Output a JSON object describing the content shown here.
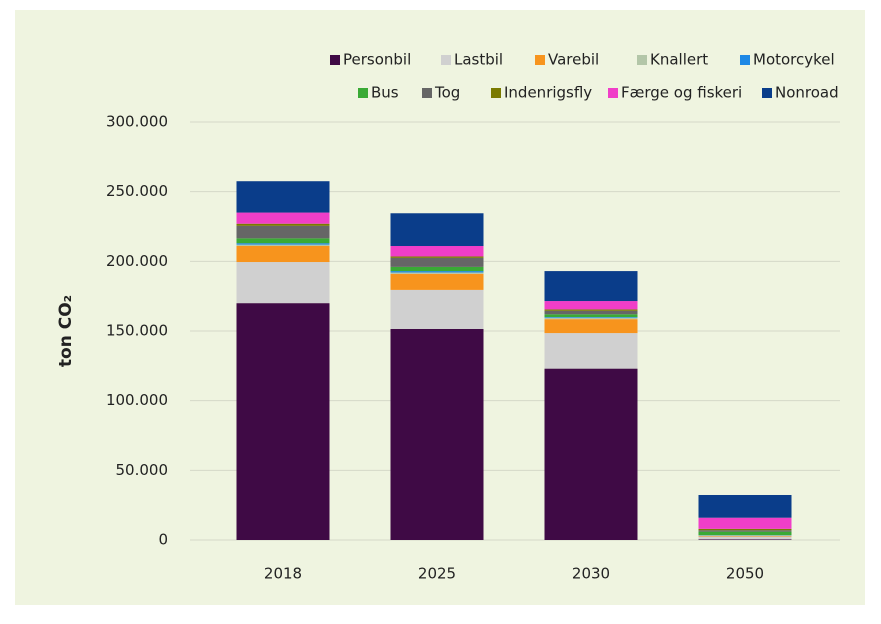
{
  "chart_data": {
    "type": "stacked-bar",
    "y_label": "ton CO₂",
    "categories": [
      "2018",
      "2025",
      "2030",
      "2050"
    ],
    "series": [
      {
        "name": "Personbil",
        "color": "#3f0a45",
        "values": [
          170000,
          151500,
          123000,
          500
        ]
      },
      {
        "name": "Lastbil",
        "color": "#d0d0d0",
        "values": [
          29500,
          28000,
          25500,
          2000
        ]
      },
      {
        "name": "Varebil",
        "color": "#f7941d",
        "values": [
          11500,
          11500,
          10000,
          500
        ]
      },
      {
        "name": "Knallert",
        "color": "#b3c6a8",
        "values": [
          1000,
          1000,
          1000,
          300
        ]
      },
      {
        "name": "Motorcykel",
        "color": "#1e88e5",
        "values": [
          1000,
          1000,
          500,
          200
        ]
      },
      {
        "name": "Bus",
        "color": "#3aaa35",
        "values": [
          3500,
          3000,
          2000,
          2500
        ]
      },
      {
        "name": "Tog",
        "color": "#666666",
        "values": [
          9000,
          6500,
          2500,
          1000
        ]
      },
      {
        "name": "Indenrigsfly",
        "color": "#7a7a00",
        "values": [
          1500,
          1000,
          1000,
          1000
        ]
      },
      {
        "name": "Færge og fiskeri",
        "color": "#f03ec8",
        "values": [
          8000,
          7500,
          6000,
          8000
        ]
      },
      {
        "name": "Nonroad",
        "color": "#0a3d8a",
        "values": [
          22500,
          23500,
          21500,
          16300
        ]
      }
    ],
    "ylim": [
      0,
      300000
    ],
    "yticks": [
      0,
      {
        "value": 50000,
        "label": "50.000"
      },
      {
        "value": 100000,
        "label": "100.000"
      },
      {
        "value": 150000,
        "label": "150.000"
      },
      {
        "value": 200000,
        "label": "200.000"
      },
      {
        "value": 250000,
        "label": "250.000"
      },
      {
        "value": 300000,
        "label": "300.000"
      }
    ],
    "grid": true
  }
}
